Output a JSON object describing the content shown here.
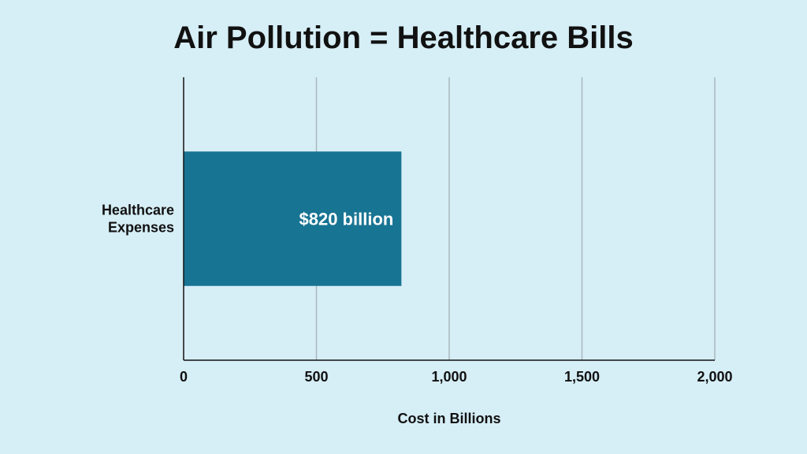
{
  "chart_data": {
    "type": "bar",
    "orientation": "horizontal",
    "title": "Air Pollution = Healthcare Bills",
    "categories": [
      "Healthcare Expenses"
    ],
    "category_label_lines": [
      [
        "Healthcare",
        "Expenses"
      ]
    ],
    "values": [
      820
    ],
    "data_labels": [
      "$820 billion"
    ],
    "xlabel": "Cost in Billions",
    "ylabel": "",
    "xlim": [
      0,
      2000
    ],
    "x_ticks": [
      0,
      500,
      1000,
      1500,
      2000
    ],
    "x_tick_labels": [
      "0",
      "500",
      "1,000",
      "1,500",
      "2,000"
    ],
    "grid": true,
    "legend": "none",
    "colors": {
      "bar": "#187493",
      "grid": "#aab8bf",
      "axis": "#111111",
      "background": "#d6eef6"
    }
  }
}
